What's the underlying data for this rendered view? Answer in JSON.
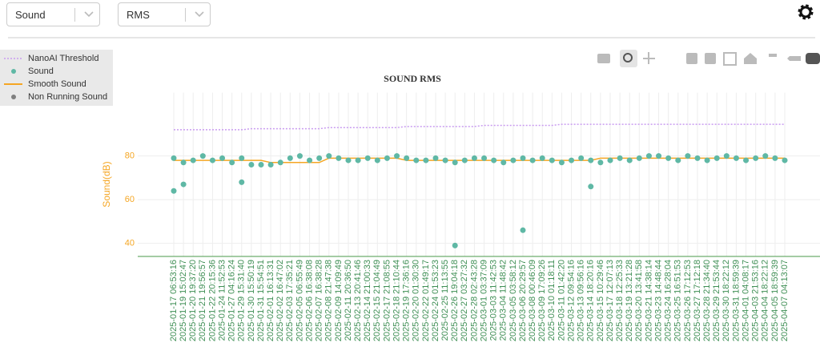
{
  "controls": {
    "metric": "Sound",
    "stat": "RMS"
  },
  "chart_data": {
    "type": "scatter",
    "title": "SOUND RMS",
    "y_label": "Sound(dB)",
    "categories": [
      "2025-01-17 06:53:16",
      "2025-01-19 15:02:47",
      "2025-01-20 19:37:20",
      "2025-01-21 19:56:57",
      "2025-01-22 20:15:36",
      "2025-01-24 11:52:53",
      "2025-01-27 04:16:24",
      "2025-01-29 15:31:40",
      "2025-01-30 15:50:19",
      "2025-01-31 15:54:51",
      "2025-02-01 16:13:31",
      "2025-02-02 16:47:02",
      "2025-02-03 17:35:21",
      "2025-02-05 06:55:49",
      "2025-02-06 16:38:08",
      "2025-02-07 16:38:28",
      "2025-02-08 21:47:38",
      "2025-02-09 14:09:49",
      "2025-02-11 20:36:50",
      "2025-02-13 20:41:46",
      "2025-02-14 21:00:33",
      "2025-02-15 21:04:49",
      "2025-02-17 21:08:55",
      "2025-02-18 21:10:44",
      "2025-02-19 17:36:16",
      "2025-02-20 01:30:30",
      "2025-02-22 01:49:17",
      "2025-02-24 01:53:23",
      "2025-02-25 11:13:55",
      "2025-02-26 19:04:18",
      "2025-02-27 03:27:32",
      "2025-02-28 02:43:28",
      "2025-03-01 03:37:09",
      "2025-03-03 11:42:53",
      "2025-03-04 11:48:42",
      "2025-03-05 03:58:12",
      "2025-03-06 20:29:57",
      "2025-03-08 00:46:09",
      "2025-03-09 17:09:26",
      "2025-03-10 01:18:11",
      "2025-03-11 01:42:20",
      "2025-03-12 09:54:16",
      "2025-03-13 09:56:16",
      "2025-03-14 18:20:16",
      "2025-03-15 10:29:46",
      "2025-03-17 12:07:13",
      "2025-03-18 12:25:33",
      "2025-03-19 13:21:28",
      "2025-03-20 13:41:58",
      "2025-03-21 14:38:14",
      "2025-03-23 14:48:44",
      "2025-03-24 16:28:04",
      "2025-03-25 16:51:53",
      "2025-03-26 17:12:53",
      "2025-03-27 17:12:18",
      "2025-03-28 21:34:40",
      "2025-03-29 21:53:44",
      "2025-03-30 18:22:12",
      "2025-03-31 18:59:39",
      "2025-04-01 04:08:17",
      "2025-04-03 21:53:16",
      "2025-04-04 18:22:12",
      "2025-04-05 18:59:39",
      "2025-04-07 04:13:07"
    ],
    "ylim": [
      34,
      109
    ],
    "yticks": [
      40,
      60,
      80
    ],
    "grid": true,
    "series": [
      {
        "name": "NanoAI Threshold",
        "color": "#c99cf0",
        "style": "dotted-line",
        "values": [
          92,
          92,
          92,
          92,
          92,
          92,
          92,
          92,
          92.5,
          92.5,
          92.5,
          92.5,
          92.5,
          92.5,
          92.5,
          92.5,
          93,
          93,
          93,
          93,
          93,
          93,
          93,
          93,
          93.5,
          93.5,
          93.5,
          93.5,
          93.5,
          93.5,
          93.5,
          93.5,
          94,
          94,
          94,
          94,
          94,
          94,
          94,
          94,
          94.5,
          94.5,
          94.5,
          94.5,
          94.5,
          94.5,
          94.5,
          94.5,
          94.5,
          94.5,
          94.5,
          94.5,
          94.5,
          94.5,
          94.5,
          94.5,
          94.5,
          94.5,
          94.5,
          94.5,
          94.5,
          94.5,
          94.5,
          94.5
        ]
      },
      {
        "name": "Sound",
        "color": "#5fb8a5",
        "style": "points",
        "x": [
          "2025-01-17 06:53:16",
          "2025-01-19 15:02:47",
          "2025-01-20 19:37:20",
          "2025-01-21 19:56:57",
          "2025-01-22 20:15:36",
          "2025-01-24 11:52:53",
          "2025-01-27 04:16:24",
          "2025-01-29 15:31:40",
          "2025-01-30 15:50:19",
          "2025-01-31 15:54:51",
          "2025-02-01 16:13:31",
          "2025-02-02 16:47:02",
          "2025-02-03 17:35:21",
          "2025-02-05 06:55:49",
          "2025-02-06 16:38:08",
          "2025-02-07 16:38:28",
          "2025-02-08 21:47:38",
          "2025-02-09 14:09:49",
          "2025-02-11 20:36:50",
          "2025-02-13 20:41:46",
          "2025-02-14 21:00:33",
          "2025-02-15 21:04:49",
          "2025-02-17 21:08:55",
          "2025-02-18 21:10:44",
          "2025-02-19 17:36:16",
          "2025-02-20 01:30:30",
          "2025-02-22 01:49:17",
          "2025-02-24 01:53:23",
          "2025-02-25 11:13:55",
          "2025-02-26 19:04:18",
          "2025-02-27 03:27:32",
          "2025-02-28 02:43:28",
          "2025-03-01 03:37:09",
          "2025-03-03 11:42:53",
          "2025-03-04 11:48:42",
          "2025-03-05 03:58:12",
          "2025-03-06 20:29:57",
          "2025-03-08 00:46:09",
          "2025-03-09 17:09:26",
          "2025-03-10 01:18:11",
          "2025-03-11 01:42:20",
          "2025-03-12 09:54:16",
          "2025-03-13 09:56:16",
          "2025-03-14 18:20:16",
          "2025-03-15 10:29:46",
          "2025-03-17 12:07:13",
          "2025-03-18 12:25:33",
          "2025-03-19 13:21:28",
          "2025-03-20 13:41:58",
          "2025-03-21 14:38:14",
          "2025-03-23 14:48:44",
          "2025-03-24 16:28:04",
          "2025-03-25 16:51:53",
          "2025-03-26 17:12:53",
          "2025-03-27 17:12:18",
          "2025-03-28 21:34:40",
          "2025-03-29 21:53:44",
          "2025-03-30 18:22:12",
          "2025-03-31 18:59:39",
          "2025-04-01 04:08:17",
          "2025-04-03 21:53:16",
          "2025-04-04 18:22:12",
          "2025-04-05 18:59:39",
          "2025-04-07 04:13:07",
          "2025-01-17 06:53:16",
          "2025-01-19 15:02:47",
          "2025-01-29 15:31:40",
          "2025-02-26 19:04:18",
          "2025-03-06 20:29:57",
          "2025-03-14 18:20:16"
        ],
        "values": [
          79,
          77,
          78,
          80,
          78,
          79,
          77,
          79,
          76,
          76,
          76,
          77,
          79,
          80,
          78,
          79,
          80,
          79,
          78,
          78,
          79,
          78,
          79,
          80,
          79,
          78,
          78,
          79,
          78,
          77,
          78,
          79,
          79,
          78,
          77,
          78,
          79,
          78,
          79,
          78,
          77,
          78,
          79,
          78,
          77,
          78,
          79,
          78,
          79,
          80,
          80,
          79,
          78,
          80,
          79,
          78,
          79,
          80,
          79,
          78,
          79,
          80,
          79,
          78,
          64,
          67,
          68,
          39,
          46,
          66
        ]
      },
      {
        "name": "Smooth Sound",
        "color": "#f5a623",
        "style": "line",
        "values": [
          78,
          78,
          78,
          78,
          78,
          78,
          78,
          78,
          78,
          78,
          77,
          77,
          77,
          77,
          77,
          77,
          79,
          79,
          79,
          79,
          79,
          79,
          79,
          79,
          78,
          78,
          78,
          78,
          78,
          78,
          78,
          78,
          78,
          78,
          78,
          78,
          78,
          78,
          78,
          78,
          78,
          78,
          78,
          78,
          79,
          79,
          79,
          79,
          79,
          79,
          79,
          79,
          79,
          79,
          79,
          79,
          79,
          79,
          79,
          79,
          79,
          79,
          79,
          79
        ]
      },
      {
        "name": "Non Running Sound",
        "color": "#7f7f7f",
        "style": "points"
      }
    ]
  }
}
